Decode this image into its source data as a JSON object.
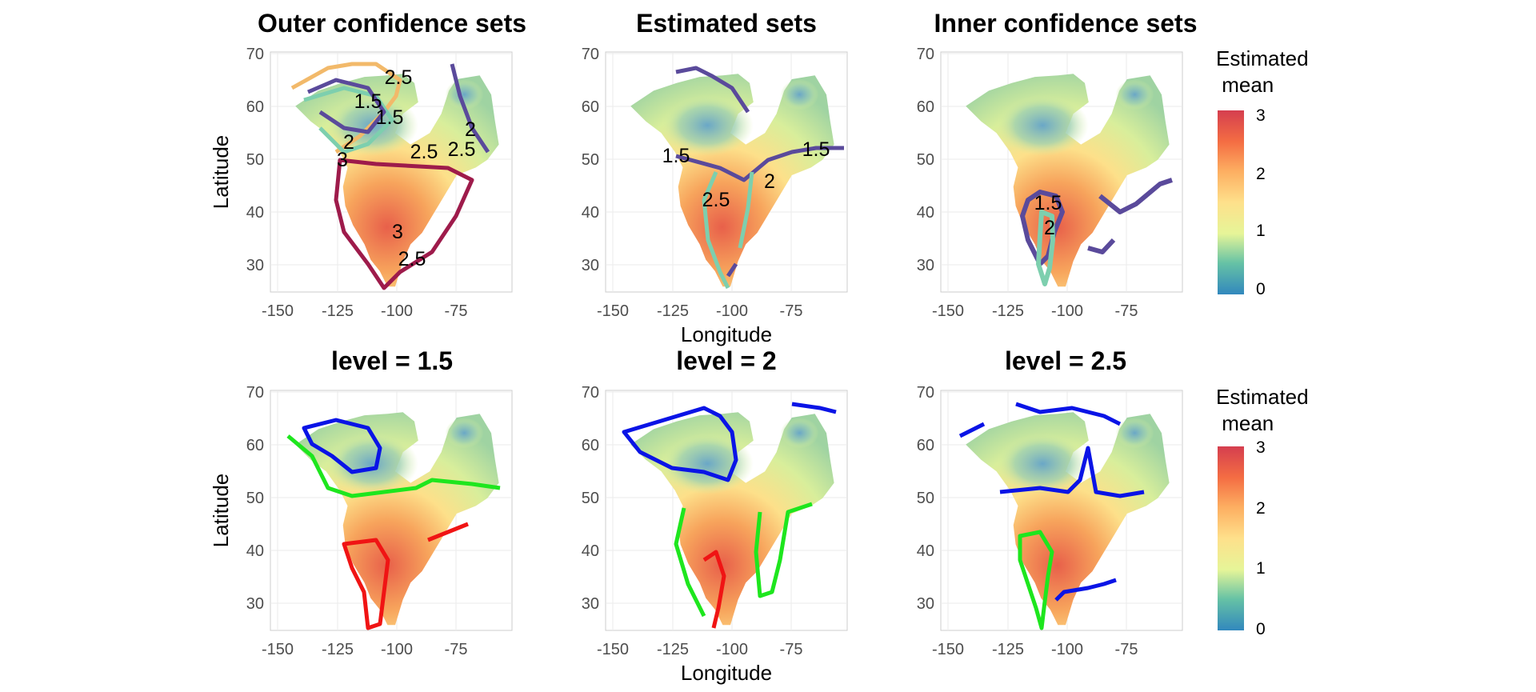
{
  "figure": {
    "row_titles_top": [
      "Outer confidence sets",
      "Estimated sets",
      "Inner confidence sets"
    ],
    "row_titles_bottom": [
      "level = 1.5",
      "level = 2",
      "level = 2.5"
    ],
    "x_label": "Longitude",
    "y_label": "Latitude",
    "x_ticks": [
      "-150",
      "-125",
      "-100",
      "-75"
    ],
    "y_ticks": [
      "70",
      "60",
      "50",
      "40",
      "30"
    ],
    "legend": {
      "title_line1": "Estimated",
      "title_line2": " mean",
      "ticks": [
        "3",
        "2",
        "1",
        "0"
      ],
      "colors": [
        "#3288bd",
        "#66c2a5",
        "#abdda4",
        "#e6f598",
        "#fee08b",
        "#fdae61",
        "#f46d43",
        "#d53e4f"
      ]
    }
  },
  "chart_data": [
    {
      "type": "heatmap",
      "title": "Outer confidence sets",
      "xlabel": "",
      "ylabel": "Latitude",
      "xlim": [
        -155,
        -55
      ],
      "ylim": [
        25,
        70
      ],
      "contour_levels": [
        1.5,
        2,
        2.5,
        3
      ],
      "contour_labels": [
        "2.5",
        "1.5",
        "1.5",
        "2",
        "2",
        "3",
        "2.5",
        "2.5",
        "3",
        "2.5"
      ]
    },
    {
      "type": "heatmap",
      "title": "Estimated sets",
      "xlabel": "",
      "ylabel": "",
      "xlim": [
        -155,
        -55
      ],
      "ylim": [
        25,
        70
      ],
      "contour_levels": [
        1.5,
        2,
        2.5
      ],
      "contour_labels": [
        "1.5",
        "1.5",
        "2",
        "2.5"
      ]
    },
    {
      "type": "heatmap",
      "title": "Inner confidence sets",
      "xlabel": "",
      "ylabel": "",
      "xlim": [
        -155,
        -55
      ],
      "ylim": [
        25,
        70
      ],
      "contour_levels": [
        1.5,
        2
      ],
      "contour_labels": [
        "1.5",
        "2"
      ]
    },
    {
      "type": "heatmap",
      "title": "level = 1.5",
      "xlabel": "",
      "ylabel": "Latitude",
      "xlim": [
        -155,
        -55
      ],
      "ylim": [
        25,
        70
      ],
      "contour_colors": [
        "blue",
        "green",
        "red"
      ]
    },
    {
      "type": "heatmap",
      "title": "level = 2",
      "xlabel": "Longitude",
      "ylabel": "",
      "xlim": [
        -155,
        -55
      ],
      "ylim": [
        25,
        70
      ],
      "contour_colors": [
        "blue",
        "green",
        "red"
      ]
    },
    {
      "type": "heatmap",
      "title": "level = 2.5",
      "xlabel": "",
      "ylabel": "",
      "xlim": [
        -155,
        -55
      ],
      "ylim": [
        25,
        70
      ],
      "contour_colors": [
        "blue",
        "green"
      ]
    }
  ]
}
